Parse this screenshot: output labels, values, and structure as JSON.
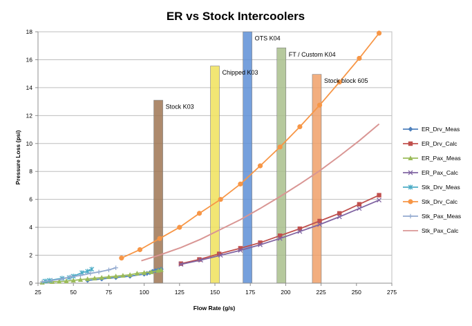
{
  "chart_data": {
    "type": "line",
    "title": "ER vs Stock Intercoolers",
    "xlabel": "Flow Rate (g/s)",
    "ylabel": "Pressure Loss (psi)",
    "xlim": [
      25,
      275
    ],
    "ylim": [
      0,
      18
    ],
    "xticks": [
      25,
      50,
      75,
      100,
      125,
      150,
      175,
      200,
      225,
      250,
      275
    ],
    "yticks": [
      0,
      2,
      4,
      6,
      8,
      10,
      12,
      14,
      16,
      18
    ],
    "grid": "horizontal",
    "legend_position": "right",
    "series": [
      {
        "name": "ER_Drv_Meas",
        "color": "#4F81BD",
        "marker": "diamond",
        "x": [
          60,
          70,
          80,
          90,
          100,
          102,
          104,
          106,
          108,
          110,
          112
        ],
        "y": [
          0.2,
          0.3,
          0.4,
          0.5,
          0.65,
          0.7,
          0.75,
          0.85,
          0.9,
          0.95,
          1.0
        ]
      },
      {
        "name": "ER_Drv_Calc",
        "color": "#C0504D",
        "marker": "square",
        "x": [
          126,
          139,
          153,
          168,
          182,
          196,
          210,
          224,
          238,
          252,
          266
        ],
        "y": [
          1.4,
          1.7,
          2.1,
          2.5,
          2.9,
          3.4,
          3.9,
          4.45,
          5.0,
          5.65,
          6.3
        ]
      },
      {
        "name": "ER_Pax_Meas",
        "color": "#9BBB59",
        "marker": "triangle",
        "x": [
          28,
          35,
          40,
          45,
          50,
          55,
          60,
          65,
          70,
          75,
          80,
          85,
          90,
          95,
          100,
          105,
          110,
          112
        ],
        "y": [
          0.05,
          0.1,
          0.12,
          0.15,
          0.2,
          0.25,
          0.3,
          0.35,
          0.4,
          0.45,
          0.5,
          0.55,
          0.6,
          0.7,
          0.75,
          0.8,
          0.9,
          0.95
        ]
      },
      {
        "name": "ER_Pax_Calc",
        "color": "#8064A2",
        "marker": "x",
        "x": [
          126,
          140,
          154,
          168,
          182,
          196,
          210,
          224,
          238,
          252,
          266
        ],
        "y": [
          1.35,
          1.65,
          2.0,
          2.35,
          2.75,
          3.2,
          3.7,
          4.2,
          4.75,
          5.35,
          5.95
        ]
      },
      {
        "name": "Stk_Drv_Meas",
        "color": "#4BACC6",
        "marker": "star",
        "x": [
          30,
          33,
          42,
          47,
          50,
          56,
          60,
          63
        ],
        "y": [
          0.15,
          0.2,
          0.35,
          0.4,
          0.5,
          0.75,
          0.85,
          1.0
        ]
      },
      {
        "name": "Stk_Drv_Calc",
        "color": "#F79646",
        "marker": "circle",
        "x": [
          84,
          97,
          111,
          125,
          139,
          154,
          168,
          182,
          196,
          210,
          224,
          238,
          252,
          266
        ],
        "y": [
          1.8,
          2.4,
          3.2,
          4.0,
          5.0,
          6.0,
          7.1,
          8.4,
          9.75,
          11.2,
          12.75,
          14.4,
          16.1,
          17.9
        ]
      },
      {
        "name": "Stk_Pax_Meas",
        "color": "#92A9CF",
        "marker": "plus",
        "x": [
          28,
          35,
          42,
          48,
          55,
          62,
          68,
          75,
          80
        ],
        "y": [
          0.1,
          0.2,
          0.3,
          0.45,
          0.55,
          0.7,
          0.8,
          0.95,
          1.1
        ]
      },
      {
        "name": "Stk_Pax_Calc",
        "color": "#D99694",
        "marker": "none",
        "x": [
          98,
          112,
          126,
          140,
          154,
          168,
          182,
          196,
          210,
          224,
          238,
          252,
          266
        ],
        "y": [
          1.6,
          2.05,
          2.55,
          3.15,
          3.85,
          4.55,
          5.35,
          6.2,
          7.1,
          8.05,
          9.1,
          10.2,
          11.4
        ]
      }
    ],
    "bars": [
      {
        "label": "Stock K03",
        "x": 110,
        "height": 13.1,
        "color": "#9F7553"
      },
      {
        "label": "Chipped K03",
        "x": 150,
        "height": 15.55,
        "color": "#F0E25C"
      },
      {
        "label": "OTS K04",
        "x": 173,
        "height": 18.0,
        "color": "#5E8FD6"
      },
      {
        "label": "FT / Custom K04",
        "x": 197,
        "height": 16.85,
        "color": "#A9C08C"
      },
      {
        "label": "Stock block 605",
        "x": 222,
        "height": 14.95,
        "color": "#F0A069"
      }
    ]
  }
}
